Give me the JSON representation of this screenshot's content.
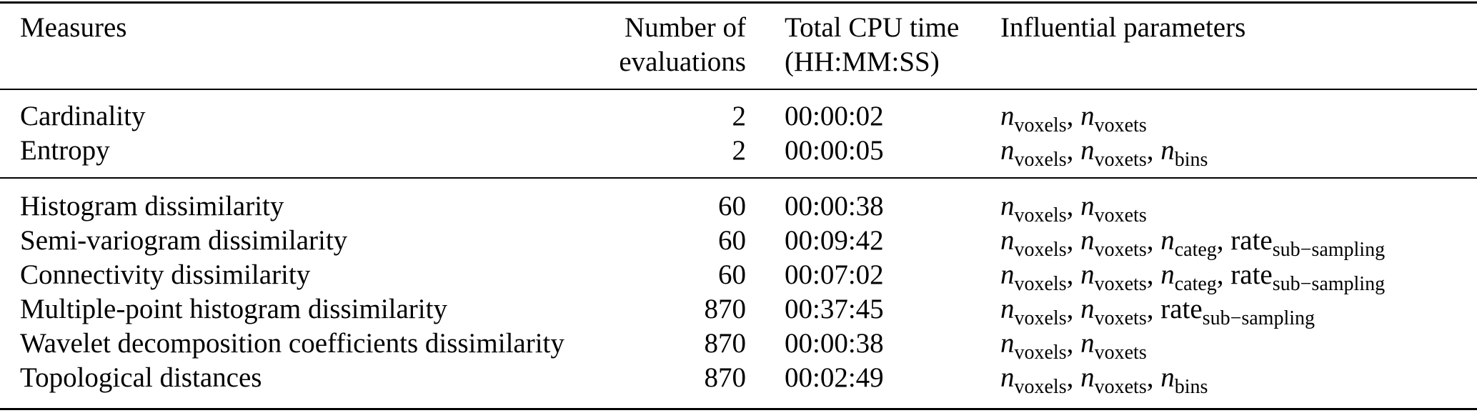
{
  "separator": ", ",
  "header": {
    "measures": "Measures",
    "evaluations_line1": "Number of",
    "evaluations_line2": "evaluations",
    "cpu_line1": "Total CPU time",
    "cpu_line2": "(HH:MM:SS)",
    "parameters": "Influential parameters"
  },
  "groups": [
    {
      "rows": [
        {
          "measure": "Cardinality",
          "evaluations": "2",
          "cpu_time": "00:00:02",
          "parameters": [
            {
              "base": "n",
              "italic": true,
              "sub": "voxels"
            },
            {
              "base": "n",
              "italic": true,
              "sub": "voxets"
            }
          ]
        },
        {
          "measure": "Entropy",
          "evaluations": "2",
          "cpu_time": "00:00:05",
          "parameters": [
            {
              "base": "n",
              "italic": true,
              "sub": "voxels"
            },
            {
              "base": "n",
              "italic": true,
              "sub": "voxets"
            },
            {
              "base": "n",
              "italic": true,
              "sub": "bins"
            }
          ]
        }
      ]
    },
    {
      "rows": [
        {
          "measure": "Histogram dissimilarity",
          "evaluations": "60",
          "cpu_time": "00:00:38",
          "parameters": [
            {
              "base": "n",
              "italic": true,
              "sub": "voxels"
            },
            {
              "base": "n",
              "italic": true,
              "sub": "voxets"
            }
          ]
        },
        {
          "measure": "Semi-variogram dissimilarity",
          "evaluations": "60",
          "cpu_time": "00:09:42",
          "parameters": [
            {
              "base": "n",
              "italic": true,
              "sub": "voxels"
            },
            {
              "base": "n",
              "italic": true,
              "sub": "voxets"
            },
            {
              "base": "n",
              "italic": true,
              "sub": "categ"
            },
            {
              "base": "rate",
              "italic": false,
              "sub": "sub−sampling"
            }
          ]
        },
        {
          "measure": "Connectivity dissimilarity",
          "evaluations": "60",
          "cpu_time": "00:07:02",
          "parameters": [
            {
              "base": "n",
              "italic": true,
              "sub": "voxels"
            },
            {
              "base": "n",
              "italic": true,
              "sub": "voxets"
            },
            {
              "base": "n",
              "italic": true,
              "sub": "categ"
            },
            {
              "base": "rate",
              "italic": false,
              "sub": "sub−sampling"
            }
          ]
        },
        {
          "measure": "Multiple-point histogram dissimilarity",
          "evaluations": "870",
          "cpu_time": "00:37:45",
          "parameters": [
            {
              "base": "n",
              "italic": true,
              "sub": "voxels"
            },
            {
              "base": "n",
              "italic": true,
              "sub": "voxets"
            },
            {
              "base": "rate",
              "italic": false,
              "sub": "sub−sampling"
            }
          ]
        },
        {
          "measure": "Wavelet decomposition coefficients dissimilarity",
          "evaluations": "870",
          "cpu_time": "00:00:38",
          "parameters": [
            {
              "base": "n",
              "italic": true,
              "sub": "voxels"
            },
            {
              "base": "n",
              "italic": true,
              "sub": "voxets"
            }
          ]
        },
        {
          "measure": "Topological distances",
          "evaluations": "870",
          "cpu_time": "00:02:49",
          "parameters": [
            {
              "base": "n",
              "italic": true,
              "sub": "voxels"
            },
            {
              "base": "n",
              "italic": true,
              "sub": "voxets"
            },
            {
              "base": "n",
              "italic": true,
              "sub": "bins"
            }
          ]
        }
      ]
    }
  ]
}
